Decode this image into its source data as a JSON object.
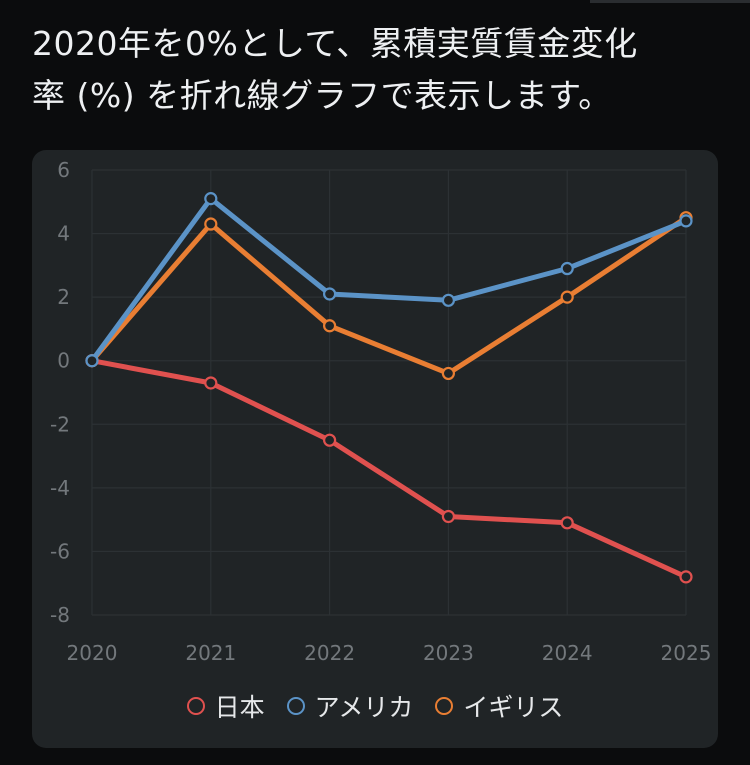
{
  "heading": {
    "line1": "2020年を0%として、累積実質賃金変化",
    "line2": "率 (%) を折れ線グラフで表示します。"
  },
  "colors": {
    "japan": "#e0514f",
    "usa": "#5b93c7",
    "uk": "#e97e33",
    "background": "#0b0c0d",
    "card": "#202426",
    "grid": "#2c3134"
  },
  "chart_data": {
    "type": "line",
    "title": "",
    "xlabel": "",
    "ylabel": "",
    "x": [
      "2020",
      "2021",
      "2022",
      "2023",
      "2024",
      "2025"
    ],
    "ylim": [
      -8,
      6
    ],
    "yticks": [
      "6",
      "4",
      "2",
      "0",
      "-2",
      "-4",
      "-6",
      "-8"
    ],
    "grid": true,
    "legend_position": "bottom",
    "series": [
      {
        "name": "日本",
        "color": "#e0514f",
        "values": [
          0,
          -0.7,
          -2.5,
          -4.9,
          -5.1,
          -6.8
        ]
      },
      {
        "name": "アメリカ",
        "color": "#5b93c7",
        "values": [
          0,
          5.1,
          2.1,
          1.9,
          2.9,
          4.4
        ]
      },
      {
        "name": "イギリス",
        "color": "#e97e33",
        "values": [
          0,
          4.3,
          1.1,
          -0.4,
          2.0,
          4.5
        ]
      }
    ]
  }
}
